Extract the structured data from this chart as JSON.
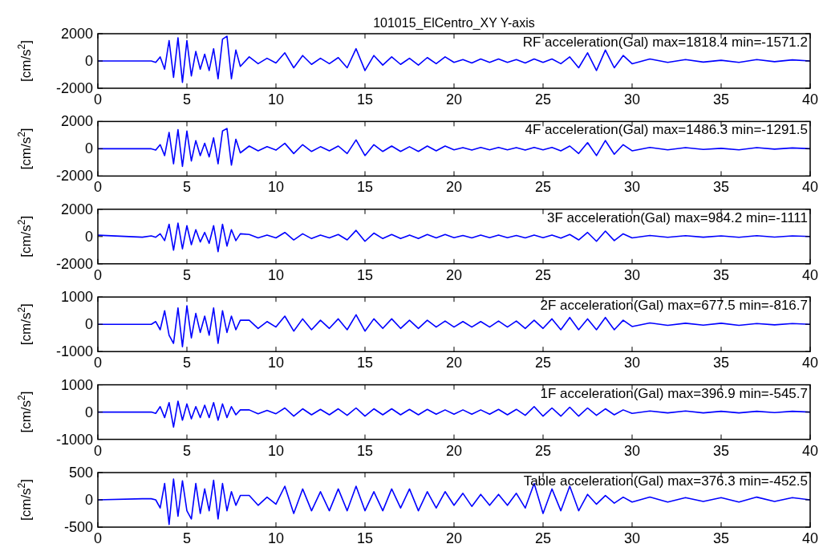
{
  "chart_data": [
    {
      "type": "line",
      "title": "101015_ElCentro_XY Y-axis",
      "ylabel": "[cm/s$^{2}$]",
      "annotations": [
        "RF acceleration(Gal) max=1818.4 min=-1571.2"
      ],
      "xlim": [
        0,
        40
      ],
      "xticks": [
        0,
        5,
        10,
        15,
        20,
        25,
        30,
        35,
        40
      ],
      "ylim": [
        -2000,
        2000
      ],
      "yticks": [
        -2000,
        0,
        2000
      ],
      "x": [
        0,
        2.5,
        3,
        3.25,
        3.5,
        3.75,
        4,
        4.25,
        4.5,
        4.75,
        5,
        5.25,
        5.5,
        5.75,
        6,
        6.25,
        6.5,
        6.75,
        7,
        7.25,
        7.5,
        7.75,
        8,
        8.5,
        9,
        9.5,
        10,
        10.5,
        11,
        11.5,
        12,
        12.5,
        13,
        13.5,
        14,
        14.5,
        15,
        15.5,
        16,
        16.5,
        17,
        17.5,
        18,
        18.5,
        19,
        19.5,
        20,
        20.5,
        21,
        21.5,
        22,
        22.5,
        23,
        23.5,
        24,
        24.5,
        25,
        25.5,
        26,
        26.5,
        27,
        27.5,
        28,
        28.5,
        29,
        29.5,
        30,
        31,
        32,
        33,
        34,
        35,
        36,
        37,
        38,
        39,
        40
      ],
      "series": [
        {
          "color": "#0000ff",
          "values": [
            0,
            0,
            0,
            -100,
            300,
            -600,
            1500,
            -1200,
            1700,
            -1570,
            1500,
            -1100,
            700,
            -600,
            500,
            -700,
            900,
            -1300,
            1600,
            1820,
            -1300,
            800,
            -400,
            300,
            -200,
            200,
            -150,
            600,
            -500,
            400,
            -250,
            200,
            -200,
            250,
            -500,
            900,
            -700,
            400,
            -300,
            300,
            -250,
            200,
            -300,
            250,
            -200,
            300,
            -100,
            100,
            -150,
            150,
            -100,
            150,
            -100,
            100,
            -150,
            150,
            -100,
            150,
            -200,
            300,
            -500,
            600,
            -700,
            800,
            -500,
            400,
            -200,
            150,
            -100,
            100,
            -80,
            50,
            -100,
            100,
            -50,
            80,
            0
          ]
        }
      ]
    },
    {
      "type": "line",
      "ylabel": "[cm/s$^{2}$]",
      "annotations": [
        "4F acceleration(Gal) max=1486.3 min=-1291.5"
      ],
      "xlim": [
        0,
        40
      ],
      "xticks": [
        0,
        5,
        10,
        15,
        20,
        25,
        30,
        35,
        40
      ],
      "ylim": [
        -2000,
        2000
      ],
      "yticks": [
        -2000,
        0,
        2000
      ],
      "x": [
        0,
        2.5,
        3,
        3.25,
        3.5,
        3.75,
        4,
        4.25,
        4.5,
        4.75,
        5,
        5.25,
        5.5,
        5.75,
        6,
        6.25,
        6.5,
        6.75,
        7,
        7.25,
        7.5,
        7.75,
        8,
        8.5,
        9,
        9.5,
        10,
        10.5,
        11,
        11.5,
        12,
        12.5,
        13,
        13.5,
        14,
        14.5,
        15,
        15.5,
        16,
        16.5,
        17,
        17.5,
        18,
        18.5,
        19,
        19.5,
        20,
        20.5,
        21,
        21.5,
        22,
        22.5,
        23,
        23.5,
        24,
        24.5,
        25,
        25.5,
        26,
        26.5,
        27,
        27.5,
        28,
        28.5,
        29,
        29.5,
        30,
        31,
        32,
        33,
        34,
        35,
        36,
        37,
        38,
        39,
        40
      ],
      "series": [
        {
          "color": "#0000ff",
          "values": [
            0,
            0,
            0,
            -100,
            300,
            -500,
            1200,
            -1100,
            1400,
            -1290,
            1300,
            -900,
            600,
            -500,
            400,
            -600,
            800,
            -1100,
            1300,
            1490,
            -1200,
            700,
            -300,
            200,
            -150,
            150,
            -100,
            400,
            -350,
            300,
            -200,
            150,
            -150,
            200,
            -350,
            650,
            -500,
            300,
            -200,
            200,
            -200,
            150,
            -200,
            200,
            -150,
            200,
            -80,
            80,
            -100,
            100,
            -80,
            100,
            -80,
            80,
            -100,
            100,
            -80,
            100,
            -150,
            200,
            -350,
            450,
            -500,
            600,
            -400,
            300,
            -150,
            100,
            -80,
            80,
            -50,
            30,
            -80,
            80,
            -30,
            60,
            0
          ]
        }
      ]
    },
    {
      "type": "line",
      "ylabel": "[cm/s$^{2}$]",
      "annotations": [
        "3F acceleration(Gal) max=984.2 min=-1111"
      ],
      "xlim": [
        0,
        40
      ],
      "xticks": [
        0,
        5,
        10,
        15,
        20,
        25,
        30,
        35,
        40
      ],
      "ylim": [
        -2000,
        2000
      ],
      "yticks": [
        -2000,
        0,
        2000
      ],
      "x": [
        0,
        2.5,
        3,
        3.25,
        3.5,
        3.75,
        4,
        4.25,
        4.5,
        4.75,
        5,
        5.25,
        5.5,
        5.75,
        6,
        6.25,
        6.5,
        6.75,
        7,
        7.25,
        7.5,
        7.75,
        8,
        8.5,
        9,
        9.5,
        10,
        10.5,
        11,
        11.5,
        12,
        12.5,
        13,
        13.5,
        14,
        14.5,
        15,
        15.5,
        16,
        16.5,
        17,
        17.5,
        18,
        18.5,
        19,
        19.5,
        20,
        20.5,
        21,
        21.5,
        22,
        22.5,
        23,
        23.5,
        24,
        24.5,
        25,
        25.5,
        26,
        26.5,
        27,
        27.5,
        28,
        28.5,
        29,
        29.5,
        30,
        31,
        32,
        33,
        34,
        35,
        36,
        37,
        38,
        39,
        40
      ],
      "series": [
        {
          "color": "#0000ff",
          "values": [
            100,
            -50,
            50,
            -50,
            200,
            -300,
            900,
            -1000,
            980,
            -900,
            800,
            -600,
            500,
            -400,
            300,
            -500,
            800,
            -1110,
            900,
            -700,
            500,
            -300,
            200,
            150,
            -100,
            100,
            -100,
            300,
            -250,
            200,
            -150,
            100,
            -100,
            150,
            -250,
            450,
            -350,
            250,
            -150,
            150,
            -150,
            100,
            -150,
            150,
            -100,
            150,
            -80,
            80,
            -100,
            100,
            -80,
            100,
            -80,
            80,
            -100,
            100,
            -80,
            100,
            -120,
            150,
            -250,
            300,
            -350,
            400,
            -300,
            200,
            -100,
            80,
            -60,
            60,
            -50,
            50,
            -60,
            60,
            -40,
            50,
            0
          ]
        }
      ]
    },
    {
      "type": "line",
      "ylabel": "[cm/s$^{2}$]",
      "annotations": [
        "2F acceleration(Gal) max=677.5 min=-816.7"
      ],
      "xlim": [
        0,
        40
      ],
      "xticks": [
        0,
        5,
        10,
        15,
        20,
        25,
        30,
        35,
        40
      ],
      "ylim": [
        -1000,
        1000
      ],
      "yticks": [
        -1000,
        0,
        1000
      ],
      "x": [
        0,
        2.5,
        3,
        3.25,
        3.5,
        3.75,
        4,
        4.25,
        4.5,
        4.75,
        5,
        5.25,
        5.5,
        5.75,
        6,
        6.25,
        6.5,
        6.75,
        7,
        7.25,
        7.5,
        7.75,
        8,
        8.5,
        9,
        9.5,
        10,
        10.5,
        11,
        11.5,
        12,
        12.5,
        13,
        13.5,
        14,
        14.5,
        15,
        15.5,
        16,
        16.5,
        17,
        17.5,
        18,
        18.5,
        19,
        19.5,
        20,
        20.5,
        21,
        21.5,
        22,
        22.5,
        23,
        23.5,
        24,
        24.5,
        25,
        25.5,
        26,
        26.5,
        27,
        27.5,
        28,
        28.5,
        29,
        29.5,
        30,
        31,
        32,
        33,
        34,
        35,
        36,
        37,
        38,
        39,
        40
      ],
      "series": [
        {
          "color": "#0000ff",
          "values": [
            0,
            0,
            0,
            100,
            -200,
            500,
            -400,
            -700,
            600,
            -820,
            680,
            -500,
            400,
            -300,
            300,
            -400,
            600,
            -700,
            500,
            -300,
            300,
            -200,
            150,
            150,
            -150,
            100,
            -100,
            300,
            -250,
            200,
            -200,
            150,
            -150,
            200,
            -200,
            350,
            -250,
            200,
            -150,
            200,
            -150,
            150,
            -150,
            150,
            -100,
            120,
            -100,
            100,
            -100,
            100,
            -100,
            120,
            -100,
            120,
            -150,
            150,
            -150,
            200,
            -200,
            250,
            -200,
            200,
            -200,
            250,
            -200,
            150,
            -80,
            50,
            -40,
            40,
            -30,
            40,
            -40,
            30,
            -20,
            30,
            0
          ]
        }
      ]
    },
    {
      "type": "line",
      "ylabel": "[cm/s$^{2}$]",
      "annotations": [
        "1F acceleration(Gal) max=396.9 min=-545.7"
      ],
      "xlim": [
        0,
        40
      ],
      "xticks": [
        0,
        5,
        10,
        15,
        20,
        25,
        30,
        35,
        40
      ],
      "ylim": [
        -1000,
        1000
      ],
      "yticks": [
        -1000,
        0,
        1000
      ],
      "x": [
        0,
        2.5,
        3,
        3.25,
        3.5,
        3.75,
        4,
        4.25,
        4.5,
        4.75,
        5,
        5.25,
        5.5,
        5.75,
        6,
        6.25,
        6.5,
        6.75,
        7,
        7.25,
        7.5,
        7.75,
        8,
        8.5,
        9,
        9.5,
        10,
        10.5,
        11,
        11.5,
        12,
        12.5,
        13,
        13.5,
        14,
        14.5,
        15,
        15.5,
        16,
        16.5,
        17,
        17.5,
        18,
        18.5,
        19,
        19.5,
        20,
        20.5,
        21,
        21.5,
        22,
        22.5,
        23,
        23.5,
        24,
        24.5,
        25,
        25.5,
        26,
        26.5,
        27,
        27.5,
        28,
        28.5,
        29,
        29.5,
        30,
        31,
        32,
        33,
        34,
        35,
        36,
        37,
        38,
        39,
        40
      ],
      "series": [
        {
          "color": "#0000ff",
          "values": [
            0,
            0,
            0,
            -50,
            200,
            -200,
            350,
            -550,
            400,
            -300,
            300,
            -250,
            200,
            -200,
            250,
            -200,
            350,
            -300,
            300,
            -200,
            200,
            -100,
            80,
            80,
            -60,
            60,
            -60,
            150,
            -150,
            120,
            -100,
            100,
            -100,
            120,
            -120,
            150,
            -150,
            120,
            -100,
            120,
            -100,
            100,
            -100,
            100,
            -80,
            80,
            -80,
            80,
            -80,
            80,
            -80,
            100,
            -100,
            100,
            -120,
            200,
            -150,
            150,
            -150,
            180,
            -150,
            150,
            -120,
            120,
            -100,
            80,
            -50,
            40,
            -30,
            40,
            -30,
            30,
            -30,
            30,
            -20,
            30,
            0
          ]
        }
      ]
    },
    {
      "type": "line",
      "ylabel": "[cm/s$^{2}$]",
      "annotations": [
        "Table acceleration(Gal) max=376.3 min=-452.5"
      ],
      "xlim": [
        0,
        40
      ],
      "xticks": [
        0,
        5,
        10,
        15,
        20,
        25,
        30,
        35,
        40
      ],
      "ylim": [
        -500,
        500
      ],
      "yticks": [
        -500,
        0,
        500
      ],
      "x": [
        0,
        2.5,
        3,
        3.25,
        3.5,
        3.75,
        4,
        4.25,
        4.5,
        4.75,
        5,
        5.25,
        5.5,
        5.75,
        6,
        6.25,
        6.5,
        6.75,
        7,
        7.25,
        7.5,
        7.75,
        8,
        8.5,
        9,
        9.5,
        10,
        10.5,
        11,
        11.5,
        12,
        12.5,
        13,
        13.5,
        14,
        14.5,
        15,
        15.5,
        16,
        16.5,
        17,
        17.5,
        18,
        18.5,
        19,
        19.5,
        20,
        20.5,
        21,
        21.5,
        22,
        22.5,
        23,
        23.5,
        24,
        24.5,
        25,
        25.5,
        26,
        26.5,
        27,
        27.5,
        28,
        28.5,
        29,
        29.5,
        30,
        31,
        32,
        33,
        34,
        35,
        36,
        37,
        38,
        39,
        40
      ],
      "series": [
        {
          "color": "#0000ff",
          "values": [
            0,
            20,
            20,
            0,
            -150,
            300,
            -450,
            380,
            -300,
            350,
            -200,
            -350,
            300,
            -250,
            200,
            -200,
            360,
            -350,
            300,
            -200,
            150,
            -100,
            80,
            80,
            -100,
            50,
            -80,
            250,
            -250,
            200,
            -200,
            150,
            -200,
            200,
            -200,
            250,
            -200,
            150,
            -200,
            200,
            -150,
            200,
            -200,
            150,
            -150,
            150,
            -100,
            120,
            -120,
            100,
            -100,
            100,
            -100,
            120,
            -150,
            300,
            -250,
            200,
            -200,
            250,
            -200,
            100,
            -80,
            80,
            -60,
            50,
            -40,
            50,
            -40,
            40,
            -30,
            40,
            -40,
            50,
            -30,
            40,
            0
          ]
        }
      ]
    }
  ]
}
